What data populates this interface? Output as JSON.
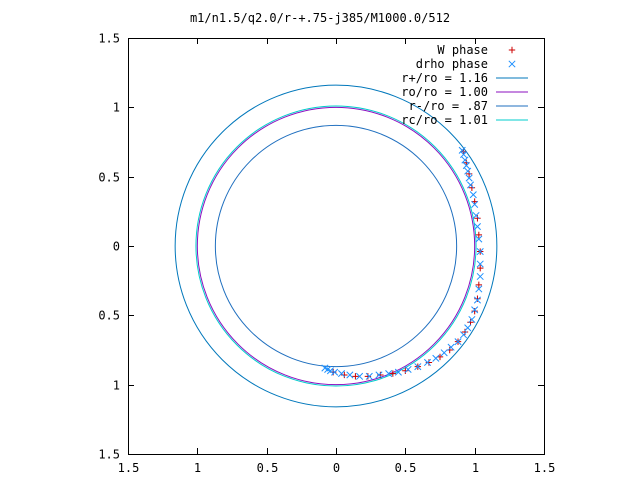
{
  "chart_data": {
    "type": "scatter",
    "title": "m1/n1.5/q2.0/r-+.75-j385/M1000.0/512",
    "xlabel": "",
    "ylabel": "",
    "xlim": [
      -1.5,
      1.5
    ],
    "ylim": [
      -1.5,
      1.5
    ],
    "x_ticks": [
      -1.5,
      -1,
      -0.5,
      0,
      0.5,
      1,
      1.5
    ],
    "x_tick_labels": [
      "1.5",
      "1",
      "0.5",
      "0",
      "0.5",
      "1",
      "1.5"
    ],
    "y_ticks": [
      1.5,
      1,
      0.5,
      0,
      -0.5,
      -1,
      -1.5
    ],
    "y_tick_labels": [
      "1.5",
      "1",
      "0.5",
      "0",
      "0.5",
      "1",
      "1.5"
    ],
    "grid": false,
    "legend_placement": "top-right",
    "series": [
      {
        "name": "W phase",
        "kind": "points",
        "marker": "+",
        "color": "#cc0000",
        "x": [
          0.92,
          0.94,
          0.96,
          0.98,
          1.0,
          1.02,
          1.03,
          1.04,
          1.04,
          1.03,
          1.02,
          1.0,
          0.97,
          0.93,
          0.88,
          0.82,
          0.75,
          0.67,
          0.59,
          0.5,
          0.41,
          0.32,
          0.23,
          0.14,
          0.06,
          -0.02
        ],
        "y": [
          0.68,
          0.6,
          0.52,
          0.42,
          0.32,
          0.2,
          0.08,
          -0.04,
          -0.16,
          -0.28,
          -0.38,
          -0.47,
          -0.55,
          -0.62,
          -0.69,
          -0.75,
          -0.8,
          -0.84,
          -0.87,
          -0.9,
          -0.92,
          -0.93,
          -0.94,
          -0.94,
          -0.93,
          -0.91
        ]
      },
      {
        "name": "drho phase",
        "kind": "points",
        "marker": "x",
        "color": "#1e90ff",
        "x": [
          0.91,
          0.92,
          0.93,
          0.94,
          0.95,
          0.96,
          0.97,
          0.99,
          1.0,
          1.01,
          1.02,
          1.03,
          1.04,
          1.04,
          1.04,
          1.03,
          1.02,
          1.0,
          0.98,
          0.95,
          0.92,
          0.88,
          0.83,
          0.78,
          0.72,
          0.66,
          0.59,
          0.52,
          0.45,
          0.38,
          0.31,
          0.24,
          0.17,
          0.1,
          0.04,
          -0.01,
          -0.04,
          -0.06,
          -0.08
        ],
        "y": [
          0.69,
          0.66,
          0.62,
          0.58,
          0.54,
          0.49,
          0.44,
          0.37,
          0.3,
          0.22,
          0.14,
          0.05,
          -0.04,
          -0.13,
          -0.22,
          -0.31,
          -0.39,
          -0.46,
          -0.53,
          -0.59,
          -0.64,
          -0.69,
          -0.73,
          -0.77,
          -0.81,
          -0.84,
          -0.87,
          -0.89,
          -0.91,
          -0.92,
          -0.93,
          -0.94,
          -0.94,
          -0.93,
          -0.92,
          -0.91,
          -0.9,
          -0.89,
          -0.88
        ]
      },
      {
        "name": "r+/ro = 1.16",
        "kind": "circle",
        "radius": 1.16,
        "color": "#0077bb"
      },
      {
        "name": "ro/ro = 1.00",
        "kind": "circle",
        "radius": 1.0,
        "color": "#8b0fbf"
      },
      {
        "name": "r-/ro = .87",
        "kind": "circle",
        "radius": 0.87,
        "color": "#1f6fbf"
      },
      {
        "name": "rc/ro = 1.01",
        "kind": "circle",
        "radius": 1.01,
        "color": "#00cccc"
      }
    ]
  }
}
